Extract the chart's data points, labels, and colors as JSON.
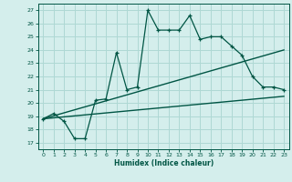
{
  "xlabel": "Humidex (Indice chaleur)",
  "bg_color": "#d4eeec",
  "grid_color": "#aed8d4",
  "line_color": "#005544",
  "xlim": [
    -0.5,
    23.5
  ],
  "ylim": [
    16.5,
    27.5
  ],
  "xticks": [
    0,
    1,
    2,
    3,
    4,
    5,
    6,
    7,
    8,
    9,
    10,
    11,
    12,
    13,
    14,
    15,
    16,
    17,
    18,
    19,
    20,
    21,
    22,
    23
  ],
  "yticks": [
    17,
    18,
    19,
    20,
    21,
    22,
    23,
    24,
    25,
    26,
    27
  ],
  "main_line": [
    [
      0,
      18.8
    ],
    [
      1,
      19.2
    ],
    [
      2,
      18.6
    ],
    [
      3,
      17.3
    ],
    [
      4,
      17.3
    ],
    [
      5,
      20.2
    ],
    [
      6,
      20.3
    ],
    [
      7,
      23.8
    ],
    [
      8,
      21.0
    ],
    [
      9,
      21.2
    ],
    [
      10,
      27.0
    ],
    [
      11,
      25.5
    ],
    [
      12,
      25.5
    ],
    [
      13,
      25.5
    ],
    [
      14,
      26.6
    ],
    [
      15,
      24.8
    ],
    [
      16,
      25.0
    ],
    [
      17,
      25.0
    ],
    [
      18,
      24.3
    ],
    [
      19,
      23.6
    ],
    [
      20,
      22.0
    ],
    [
      21,
      21.2
    ],
    [
      22,
      21.2
    ],
    [
      23,
      21.0
    ]
  ],
  "line2": [
    [
      0,
      18.8
    ],
    [
      23,
      24.0
    ]
  ],
  "line3": [
    [
      0,
      18.8
    ],
    [
      23,
      20.5
    ]
  ]
}
